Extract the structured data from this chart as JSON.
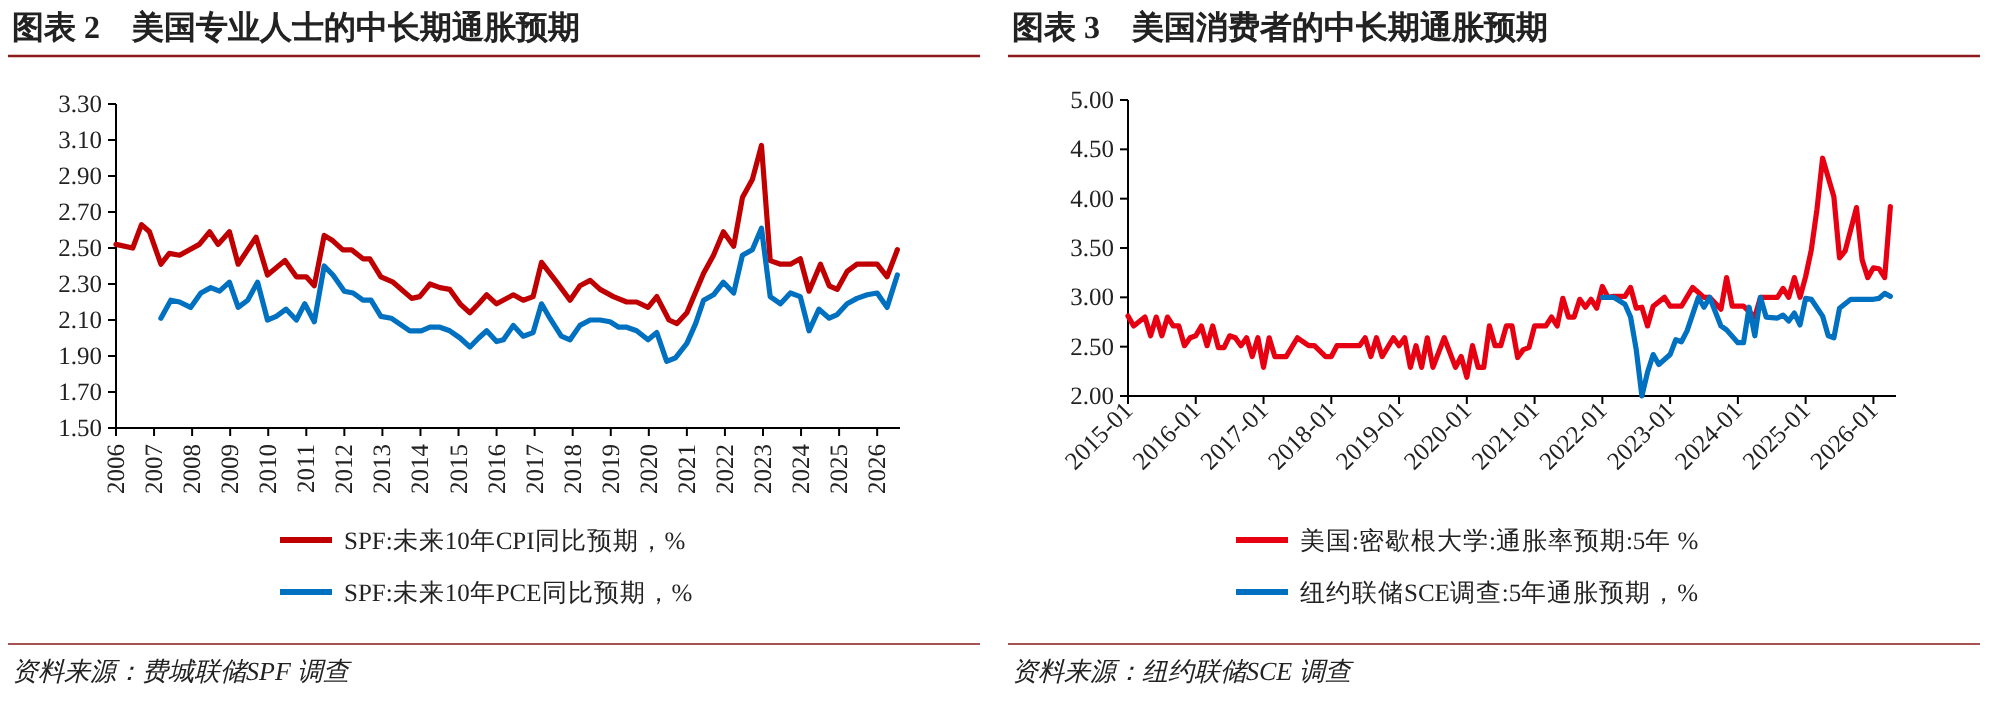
{
  "chart_data": [
    {
      "type": "line",
      "title": "图表 2　美国专业人士的中长期通胀预期",
      "annotations": [
        "资料来源：费城联储SPF 调查"
      ],
      "xlim": [
        2006,
        2026.6
      ],
      "xticks": [
        2006,
        2007,
        2008,
        2009,
        2010,
        2011,
        2012,
        2013,
        2014,
        2015,
        2016,
        2017,
        2018,
        2019,
        2020,
        2021,
        2022,
        2023,
        2024,
        2025,
        2026
      ],
      "ylim": [
        1.5,
        3.3
      ],
      "yticks": [
        {
          "value": 1.5,
          "label": "1.50"
        },
        {
          "value": 1.7,
          "label": "1.70"
        },
        {
          "value": 1.9,
          "label": "1.90"
        },
        {
          "value": 2.1,
          "label": "2.10"
        },
        {
          "value": 2.3,
          "label": "2.30"
        },
        {
          "value": 2.5,
          "label": "2.50"
        },
        {
          "value": 2.7,
          "label": "2.70"
        },
        {
          "value": 2.9,
          "label": "2.90"
        },
        {
          "value": 3.1,
          "label": "3.10"
        },
        {
          "value": 3.3,
          "label": "3.30"
        }
      ],
      "legend": "bottom",
      "series": [
        {
          "name": "SPF:未来10年CPI同比预期，%",
          "color": "#c00000",
          "x": [
            2006.0,
            2006.44,
            2006.67,
            2006.88,
            2007.18,
            2007.4,
            2007.67,
            2008.19,
            2008.46,
            2008.68,
            2008.98,
            2009.21,
            2009.68,
            2009.98,
            2010.44,
            2010.74,
            2011.0,
            2011.21,
            2011.47,
            2011.7,
            2011.96,
            2012.19,
            2012.49,
            2012.67,
            2012.96,
            2013.28,
            2013.77,
            2013.98,
            2014.25,
            2014.51,
            2014.77,
            2015.04,
            2015.3,
            2015.53,
            2015.74,
            2016.0,
            2016.44,
            2016.7,
            2016.96,
            2017.18,
            2017.58,
            2017.93,
            2018.19,
            2018.46,
            2018.72,
            2019.07,
            2019.42,
            2019.68,
            2019.98,
            2020.21,
            2020.53,
            2020.74,
            2021.0,
            2021.44,
            2021.7,
            2021.96,
            2022.23,
            2022.46,
            2022.72,
            2022.96,
            2023.19,
            2023.46,
            2023.72,
            2023.98,
            2024.21,
            2024.51,
            2024.74,
            2024.95,
            2025.21,
            2025.47,
            2025.74,
            2026.0,
            2026.26,
            2026.53
          ],
          "values": [
            2.52,
            2.5,
            2.63,
            2.59,
            2.41,
            2.47,
            2.46,
            2.52,
            2.59,
            2.52,
            2.59,
            2.41,
            2.56,
            2.35,
            2.43,
            2.34,
            2.34,
            2.29,
            2.57,
            2.54,
            2.49,
            2.49,
            2.44,
            2.44,
            2.34,
            2.31,
            2.22,
            2.23,
            2.3,
            2.28,
            2.27,
            2.19,
            2.14,
            2.19,
            2.24,
            2.19,
            2.24,
            2.21,
            2.23,
            2.42,
            2.31,
            2.21,
            2.29,
            2.32,
            2.27,
            2.23,
            2.2,
            2.2,
            2.17,
            2.23,
            2.1,
            2.08,
            2.14,
            2.36,
            2.46,
            2.59,
            2.51,
            2.78,
            2.88,
            3.07,
            2.43,
            2.41,
            2.41,
            2.44,
            2.26,
            2.41,
            2.29,
            2.27,
            2.37,
            2.41,
            2.41,
            2.41,
            2.34,
            2.49
          ]
        },
        {
          "name": "SPF:未来10年PCE同比预期，%",
          "color": "#0070c0",
          "x": [
            2007.18,
            2007.44,
            2007.67,
            2007.96,
            2008.23,
            2008.49,
            2008.72,
            2008.98,
            2009.21,
            2009.46,
            2009.72,
            2009.98,
            2010.21,
            2010.47,
            2010.74,
            2010.96,
            2011.21,
            2011.47,
            2011.7,
            2012.0,
            2012.23,
            2012.49,
            2012.7,
            2012.96,
            2013.23,
            2013.72,
            2014.02,
            2014.25,
            2014.51,
            2014.77,
            2015.04,
            2015.3,
            2015.53,
            2015.74,
            2016.0,
            2016.18,
            2016.44,
            2016.7,
            2016.96,
            2017.18,
            2017.4,
            2017.7,
            2017.93,
            2018.19,
            2018.46,
            2018.72,
            2018.98,
            2019.21,
            2019.42,
            2019.68,
            2019.98,
            2020.21,
            2020.47,
            2020.7,
            2021.0,
            2021.23,
            2021.44,
            2021.7,
            2021.96,
            2022.23,
            2022.46,
            2022.72,
            2022.96,
            2023.19,
            2023.46,
            2023.72,
            2023.98,
            2024.21,
            2024.47,
            2024.74,
            2024.95,
            2025.21,
            2025.47,
            2025.74,
            2026.0,
            2026.26,
            2026.53
          ],
          "values": [
            2.11,
            2.21,
            2.2,
            2.17,
            2.25,
            2.28,
            2.26,
            2.31,
            2.17,
            2.21,
            2.31,
            2.1,
            2.12,
            2.16,
            2.1,
            2.19,
            2.09,
            2.4,
            2.35,
            2.26,
            2.25,
            2.21,
            2.21,
            2.12,
            2.11,
            2.04,
            2.04,
            2.06,
            2.06,
            2.04,
            2.0,
            1.95,
            2.0,
            2.04,
            1.98,
            1.99,
            2.07,
            2.01,
            2.03,
            2.19,
            2.11,
            2.01,
            1.99,
            2.07,
            2.1,
            2.1,
            2.09,
            2.06,
            2.06,
            2.04,
            1.99,
            2.03,
            1.87,
            1.89,
            1.97,
            2.08,
            2.21,
            2.24,
            2.31,
            2.25,
            2.46,
            2.49,
            2.61,
            2.23,
            2.19,
            2.25,
            2.23,
            2.04,
            2.16,
            2.11,
            2.13,
            2.19,
            2.22,
            2.24,
            2.25,
            2.17,
            2.35
          ]
        }
      ]
    },
    {
      "type": "line",
      "title": "图表 3　美国消费者的中长期通胀预期",
      "annotations": [
        "资料来源：纽约联储SCE 调查"
      ],
      "xlim": [
        "2015-01",
        "2026-05"
      ],
      "xticks": [
        "2015-01",
        "2016-01",
        "2017-01",
        "2018-01",
        "2019-01",
        "2020-01",
        "2021-01",
        "2022-01",
        "2023-01",
        "2024-01",
        "2025-01",
        "2026-01"
      ],
      "ylim": [
        2,
        5
      ],
      "yticks": [
        {
          "value": 2,
          "label": "2.00"
        },
        {
          "value": 2.5,
          "label": "2.50"
        },
        {
          "value": 3,
          "label": "3.00"
        },
        {
          "value": 3.5,
          "label": "3.50"
        },
        {
          "value": 4,
          "label": "4.00"
        },
        {
          "value": 4.5,
          "label": "4.50"
        },
        {
          "value": 5,
          "label": "5.00"
        }
      ],
      "legend": "bottom",
      "series": [
        {
          "name": "美国:密歇根大学:通胀率预期:5年 %",
          "color": "#e60012",
          "x": [
            "2015-01",
            "2015-02",
            "2015-04",
            "2015-05",
            "2015-06",
            "2015-07",
            "2015-08",
            "2015-09",
            "2015-10",
            "2015-11",
            "2015-12",
            "2016-01",
            "2016-02",
            "2016-03",
            "2016-04",
            "2016-05",
            "2016-06",
            "2016-07",
            "2016-08",
            "2016-09",
            "2016-10",
            "2016-11",
            "2016-12",
            "2017-01",
            "2017-02",
            "2017-03",
            "2017-05",
            "2017-07",
            "2017-09",
            "2017-10",
            "2017-12",
            "2018-01",
            "2018-02",
            "2018-06",
            "2018-07",
            "2018-08",
            "2018-09",
            "2018-10",
            "2018-12",
            "2019-01",
            "2019-02",
            "2019-03",
            "2019-04",
            "2019-05",
            "2019-06",
            "2019-07",
            "2019-09",
            "2019-11",
            "2019-12",
            "2020-01",
            "2020-02",
            "2020-03",
            "2020-04",
            "2020-05",
            "2020-06",
            "2020-07",
            "2020-08",
            "2020-09",
            "2020-10",
            "2020-11",
            "2020-12",
            "2021-01",
            "2021-03",
            "2021-04",
            "2021-05",
            "2021-06",
            "2021-07",
            "2021-08",
            "2021-09",
            "2021-10",
            "2021-11",
            "2021-12",
            "2022-01",
            "2022-02",
            "2022-03",
            "2022-05",
            "2022-06",
            "2022-07",
            "2022-08",
            "2022-09",
            "2022-10",
            "2022-12",
            "2023-01",
            "2023-03",
            "2023-05",
            "2023-07",
            "2023-08",
            "2023-10",
            "2023-11",
            "2023-12",
            "2024-02",
            "2024-04",
            "2024-05",
            "2024-06",
            "2024-08",
            "2024-09",
            "2024-10",
            "2024-11",
            "2024-12",
            "2025-01",
            "2025-02",
            "2025-03",
            "2025-04",
            "2025-06",
            "2025-07",
            "2025-08",
            "2025-10",
            "2025-11",
            "2025-12",
            "2026-01",
            "2026-02",
            "2026-03",
            "2026-04"
          ],
          "values": [
            2.81,
            2.71,
            2.8,
            2.61,
            2.8,
            2.61,
            2.8,
            2.71,
            2.71,
            2.51,
            2.59,
            2.61,
            2.71,
            2.51,
            2.71,
            2.49,
            2.49,
            2.61,
            2.59,
            2.51,
            2.59,
            2.4,
            2.59,
            2.29,
            2.59,
            2.4,
            2.4,
            2.59,
            2.51,
            2.51,
            2.4,
            2.4,
            2.51,
            2.51,
            2.59,
            2.4,
            2.59,
            2.4,
            2.59,
            2.51,
            2.59,
            2.29,
            2.51,
            2.29,
            2.59,
            2.29,
            2.59,
            2.29,
            2.4,
            2.19,
            2.51,
            2.29,
            2.29,
            2.71,
            2.51,
            2.51,
            2.71,
            2.71,
            2.39,
            2.47,
            2.49,
            2.71,
            2.71,
            2.8,
            2.71,
            2.99,
            2.8,
            2.8,
            2.98,
            2.9,
            2.98,
            2.89,
            3.11,
            3.0,
            3.01,
            3.01,
            3.1,
            2.89,
            2.9,
            2.71,
            2.91,
            3.0,
            2.91,
            2.91,
            3.1,
            3.0,
            3.0,
            2.88,
            3.2,
            2.91,
            2.91,
            2.8,
            3.0,
            3.0,
            3.0,
            3.09,
            3.0,
            3.2,
            3.0,
            3.21,
            3.48,
            3.89,
            4.41,
            4.02,
            3.4,
            3.47,
            3.91,
            3.38,
            3.2,
            3.3,
            3.29,
            3.2,
            3.92
          ]
        },
        {
          "name": "纽约联储SCE调查:5年通胀预期，%",
          "color": "#0070c0",
          "x": [
            "2022-01",
            "2022-03",
            "2022-05",
            "2022-06",
            "2022-07",
            "2022-08",
            "2022-09",
            "2022-10",
            "2022-11",
            "2023-01",
            "2023-02",
            "2023-03",
            "2023-04",
            "2023-06",
            "2023-07",
            "2023-08",
            "2023-10",
            "2023-11",
            "2024-01",
            "2024-02",
            "2024-03",
            "2024-04",
            "2024-05",
            "2024-06",
            "2024-08",
            "2024-09",
            "2024-10",
            "2024-11",
            "2024-12",
            "2025-01",
            "2025-02",
            "2025-04",
            "2025-05",
            "2025-06",
            "2025-07",
            "2025-09",
            "2025-11",
            "2026-01",
            "2026-02",
            "2026-03",
            "2026-04"
          ],
          "values": [
            3.0,
            3.0,
            2.93,
            2.8,
            2.47,
            2.0,
            2.24,
            2.42,
            2.32,
            2.42,
            2.57,
            2.55,
            2.66,
            3.0,
            2.9,
            3.0,
            2.71,
            2.67,
            2.54,
            2.54,
            2.9,
            2.61,
            3.0,
            2.8,
            2.79,
            2.82,
            2.76,
            2.84,
            2.72,
            2.99,
            2.98,
            2.81,
            2.61,
            2.59,
            2.89,
            2.98,
            2.98,
            2.98,
            2.99,
            3.04,
            3.01
          ]
        }
      ]
    }
  ]
}
